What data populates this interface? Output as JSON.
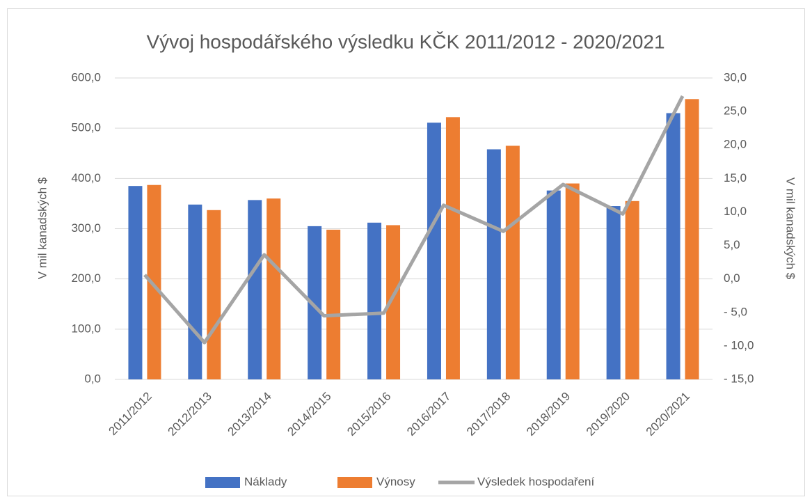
{
  "chart_data": {
    "type": "bar_line",
    "title": "Vývoj hospodářského výsledku KČK 2011/2012 - 2020/2021",
    "y_label": "V mil kanadských $",
    "y2_label": "V mil kanadských $",
    "categories": [
      "2011/2012",
      "2012/2013",
      "2013/2014",
      "2014/2015",
      "2015/2016",
      "2016/2017",
      "2017/2018",
      "2018/2019",
      "2019/2020",
      "2020/2021"
    ],
    "series": [
      {
        "name": "Náklady",
        "type": "bar",
        "color": "#4472c4",
        "values": [
          385,
          348,
          357,
          305,
          312,
          511,
          458,
          376,
          345,
          530
        ]
      },
      {
        "name": "Výnosy",
        "type": "bar",
        "color": "#ed7d31",
        "values": [
          387,
          337,
          360,
          298,
          307,
          522,
          465,
          390,
          355,
          558
        ]
      },
      {
        "name": "Výsledek hospodaření",
        "type": "line",
        "axis": "y2",
        "color": "#a5a5a5",
        "values": [
          0.6,
          -9.5,
          3.6,
          -5.5,
          -5.1,
          11.0,
          7.1,
          14.1,
          9.7,
          27.3
        ]
      }
    ],
    "ylim": [
      0,
      600
    ],
    "yticks": [
      {
        "value": 0,
        "label": "0,0"
      },
      {
        "value": 100,
        "label": "100,0"
      },
      {
        "value": 200,
        "label": "200,0"
      },
      {
        "value": 300,
        "label": "300,0"
      },
      {
        "value": 400,
        "label": "400,0"
      },
      {
        "value": 500,
        "label": "500,0"
      },
      {
        "value": 600,
        "label": "600,0"
      }
    ],
    "y2lim": [
      -15,
      30
    ],
    "y2ticks": [
      {
        "value": -15,
        "label": "- 15,0"
      },
      {
        "value": -10,
        "label": "- 10,0"
      },
      {
        "value": -5,
        "label": "- 5,0"
      },
      {
        "value": 0,
        "label": "0,0"
      },
      {
        "value": 5,
        "label": "5,0"
      },
      {
        "value": 10,
        "label": "10,0"
      },
      {
        "value": 15,
        "label": "15,0"
      },
      {
        "value": 20,
        "label": "20,0"
      },
      {
        "value": 25,
        "label": "25,0"
      },
      {
        "value": 30,
        "label": "30,0"
      }
    ],
    "grid": true,
    "legend": "bottom"
  }
}
